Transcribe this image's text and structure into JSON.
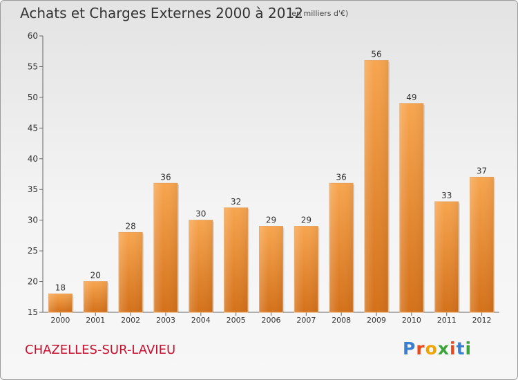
{
  "header": {
    "title": "Achats et Charges Externes 2000 à 2012",
    "subtitle": "(en milliers d'€)"
  },
  "footer": {
    "location": "CHAZELLES-SUR-LAVIEU",
    "logo_text": "Proxiti"
  },
  "colors": {
    "bar_top": "#f7a54f",
    "bar_bottom": "#d4711a",
    "location": "#c8102e"
  },
  "chart_data": {
    "type": "bar",
    "categories": [
      "2000",
      "2001",
      "2002",
      "2003",
      "2004",
      "2005",
      "2006",
      "2007",
      "2008",
      "2009",
      "2010",
      "2011",
      "2012"
    ],
    "values": [
      18,
      20,
      28,
      36,
      30,
      32,
      29,
      29,
      36,
      56,
      49,
      33,
      37
    ],
    "data_labels": [
      "18",
      "20",
      "28",
      "36",
      "30",
      "32",
      "29",
      "29",
      "36",
      "56",
      "49",
      "33",
      "37"
    ],
    "ylim": [
      15,
      60
    ],
    "yticks": [
      15,
      20,
      25,
      30,
      35,
      40,
      45,
      50,
      55,
      60
    ],
    "grid": false,
    "xlabel": "",
    "ylabel": ""
  }
}
